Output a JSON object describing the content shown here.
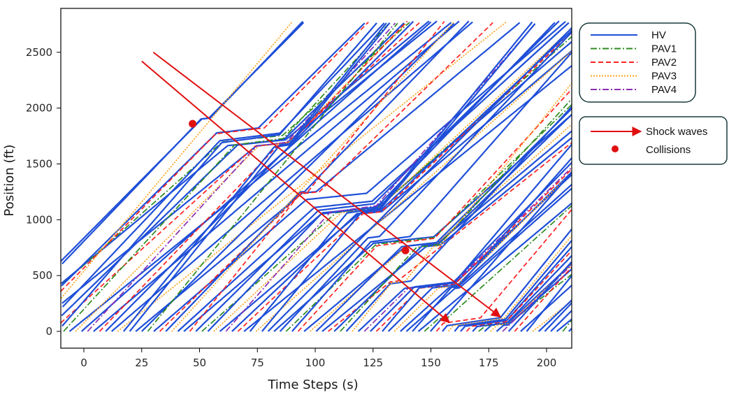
{
  "chart_data": {
    "type": "line",
    "title": "",
    "xlabel": "Time Steps (s)",
    "ylabel": "Position (ft)",
    "xlim": [
      -10,
      210
    ],
    "ylim": [
      -150,
      2900
    ],
    "xticks": [
      0,
      25,
      50,
      75,
      100,
      125,
      150,
      175,
      200
    ],
    "yticks": [
      0,
      500,
      1000,
      1500,
      2000,
      2500
    ],
    "grid": false,
    "legend": {
      "placement": "right",
      "entries": [
        {
          "name": "HV",
          "color": "#1f4fd8",
          "dash": "solid"
        },
        {
          "name": "PAV1",
          "color": "#2e8b1f",
          "dash": "dashdot"
        },
        {
          "name": "PAV2",
          "color": "#ff2020",
          "dash": "dashed"
        },
        {
          "name": "PAV3",
          "color": "#ffa31a",
          "dash": "dotted"
        },
        {
          "name": "PAV4",
          "color": "#8a2fb5",
          "dash": "dashdot"
        }
      ]
    },
    "annotation_legend": {
      "placement": "right",
      "entries": [
        {
          "name": "Shock waves",
          "color": "#e01010",
          "kind": "arrow"
        },
        {
          "name": "Collisions",
          "color": "#e01010",
          "kind": "dot"
        }
      ]
    },
    "shock_waves": [
      {
        "from": [
          25,
          2420
        ],
        "to": [
          158,
          80
        ]
      },
      {
        "from": [
          30,
          2500
        ],
        "to": [
          180,
          130
        ]
      }
    ],
    "collisions": [
      {
        "x": 47,
        "y": 1860
      },
      {
        "x": 139,
        "y": 725
      }
    ],
    "vehicle_trajectories": {
      "description_series": [
        "HV",
        "PAV1",
        "PAV2",
        "PAV3",
        "PAV4"
      ],
      "road_length_ft": 2780,
      "sim_duration_s": 200,
      "stop_and_go_bands": [
        {
          "time_center": 40,
          "position_range": [
            1900,
            2250
          ]
        },
        {
          "time_center": 75,
          "position_range": [
            1650,
            1820
          ]
        },
        {
          "time_center": 115,
          "position_range": [
            1050,
            1250
          ]
        },
        {
          "time_center": 140,
          "position_range": [
            750,
            850
          ]
        },
        {
          "time_center": 148,
          "position_range": [
            380,
            450
          ]
        },
        {
          "time_center": 170,
          "position_range": [
            40,
            120
          ]
        }
      ]
    }
  }
}
